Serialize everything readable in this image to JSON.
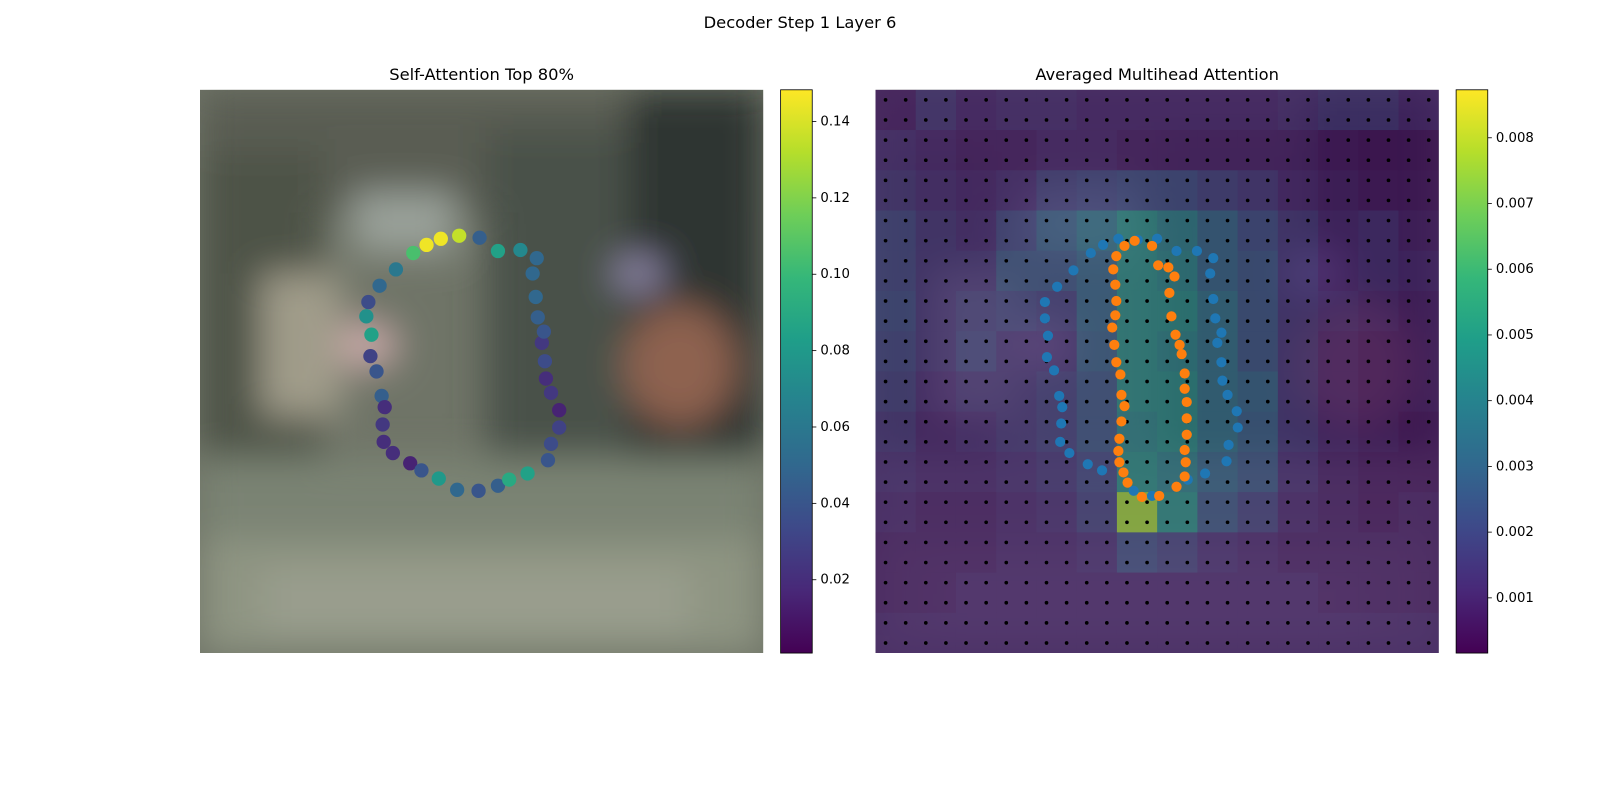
{
  "title": "Decoder Step 1 Layer 6",
  "chart_data": [
    {
      "type": "scatter",
      "title": "Self-Attention Top 80%",
      "colormap": "viridis",
      "xlim": [
        0,
        552
      ],
      "ylim": [
        552,
        0
      ],
      "x": [
        254,
        236,
        222,
        209,
        192,
        176,
        165,
        163,
        168,
        167,
        173,
        178,
        181,
        179,
        180,
        189,
        206,
        217,
        234,
        252,
        273,
        292,
        303,
        321,
        341,
        344,
        352,
        352,
        344,
        339,
        338,
        335,
        337,
        331,
        329,
        326,
        330,
        314,
        292,
        274
      ],
      "y": [
        143,
        146,
        152,
        160,
        176,
        192,
        208,
        222,
        240,
        261,
        276,
        300,
        311,
        328,
        345,
        356,
        366,
        373,
        381,
        392,
        393,
        388,
        382,
        376,
        363,
        347,
        331,
        314,
        297,
        283,
        266,
        248,
        237,
        223,
        203,
        180,
        165,
        157,
        158,
        145
      ],
      "values": [
        0.135,
        0.145,
        0.145,
        0.105,
        0.06,
        0.05,
        0.035,
        0.075,
        0.085,
        0.03,
        0.04,
        0.045,
        0.02,
        0.025,
        0.02,
        0.02,
        0.015,
        0.04,
        0.08,
        0.05,
        0.04,
        0.045,
        0.09,
        0.085,
        0.04,
        0.035,
        0.03,
        0.015,
        0.025,
        0.02,
        0.035,
        0.025,
        0.04,
        0.045,
        0.05,
        0.05,
        0.05,
        0.07,
        0.085,
        0.045
      ],
      "colorbar": {
        "lim": [
          0.0008,
          0.1483
        ],
        "ticks": [
          0.02,
          0.04,
          0.06,
          0.08,
          {
            "value": 0.1,
            "label": "0.10"
          },
          0.12,
          0.14
        ]
      }
    },
    {
      "type": "heatmap",
      "title": "Averaged Multihead Attention",
      "colormap": "viridis",
      "xlim": [
        0,
        552
      ],
      "ylim": [
        552,
        0
      ],
      "z": [
        [
          0.0008,
          0.0015,
          0.001,
          0.0012,
          0.0012,
          0.001,
          0.001,
          0.001,
          0.001,
          0.001,
          0.0012,
          0.0015,
          0.0015,
          0.001
        ],
        [
          0.0012,
          0.001,
          0.0008,
          0.0008,
          0.001,
          0.001,
          0.0008,
          0.0008,
          0.0008,
          0.0008,
          0.0008,
          0.0006,
          0.0005,
          0.0005
        ],
        [
          0.0015,
          0.0012,
          0.001,
          0.0012,
          0.0018,
          0.002,
          0.0022,
          0.0022,
          0.0018,
          0.0015,
          0.001,
          0.0008,
          0.0006,
          0.0006
        ],
        [
          0.002,
          0.0015,
          0.0012,
          0.002,
          0.0028,
          0.0035,
          0.0045,
          0.004,
          0.003,
          0.0022,
          0.0015,
          0.001,
          0.0012,
          0.0008
        ],
        [
          0.002,
          0.0015,
          0.0015,
          0.0025,
          0.0025,
          0.003,
          0.0045,
          0.0042,
          0.003,
          0.0025,
          0.0015,
          0.001,
          0.0012,
          0.001
        ],
        [
          0.0022,
          0.0015,
          0.0018,
          0.002,
          0.0018,
          0.003,
          0.0045,
          0.0045,
          0.0035,
          0.0025,
          0.0015,
          0.0012,
          0.001,
          0.0008
        ],
        [
          0.002,
          0.0015,
          0.002,
          0.0015,
          0.0015,
          0.0028,
          0.0045,
          0.0042,
          0.0035,
          0.0025,
          0.0015,
          0.001,
          0.0008,
          0.0008
        ],
        [
          0.0018,
          0.0012,
          0.0015,
          0.0015,
          0.0018,
          0.0025,
          0.0045,
          0.0045,
          0.0035,
          0.003,
          0.0015,
          0.001,
          0.0008,
          0.0008
        ],
        [
          0.0015,
          0.001,
          0.0012,
          0.0015,
          0.0018,
          0.0025,
          0.0042,
          0.0045,
          0.0035,
          0.0028,
          0.0015,
          0.001,
          0.0008,
          0.0006
        ],
        [
          0.0012,
          0.001,
          0.001,
          0.0012,
          0.0015,
          0.002,
          0.0045,
          0.004,
          0.003,
          0.0025,
          0.0012,
          0.0008,
          0.0006,
          0.0006
        ],
        [
          0.001,
          0.0008,
          0.0008,
          0.001,
          0.0012,
          0.0018,
          0.0075,
          0.0045,
          0.0025,
          0.0018,
          0.001,
          0.0008,
          0.0006,
          0.0008
        ],
        [
          0.0008,
          0.0008,
          0.0008,
          0.001,
          0.001,
          0.0012,
          0.0022,
          0.0018,
          0.0012,
          0.001,
          0.0008,
          0.0008,
          0.0008,
          0.0008
        ],
        [
          0.0008,
          0.0008,
          0.001,
          0.001,
          0.001,
          0.001,
          0.001,
          0.001,
          0.001,
          0.001,
          0.001,
          0.0008,
          0.0008,
          0.0008
        ],
        [
          0.001,
          0.001,
          0.001,
          0.001,
          0.001,
          0.001,
          0.001,
          0.001,
          0.001,
          0.001,
          0.001,
          0.001,
          0.001,
          0.001
        ]
      ],
      "series": [
        {
          "color": "#1f77b4",
          "x": [
            211,
            223,
            238,
            257,
            276,
            295,
            315,
            331,
            328,
            331,
            333,
            339,
            335,
            339,
            340,
            345,
            354,
            355,
            346,
            344,
            323,
            306,
            271,
            253,
            222,
            208,
            190,
            181,
            182,
            183,
            180,
            175,
            168,
            169,
            166,
            166,
            178,
            194
          ],
          "y": [
            160,
            152,
            146,
            147,
            146,
            158,
            158,
            165,
            180,
            205,
            224,
            238,
            248,
            267,
            285,
            299,
            315,
            331,
            348,
            364,
            376,
            382,
            398,
            393,
            373,
            367,
            356,
            345,
            327,
            311,
            300,
            275,
            262,
            241,
            224,
            208,
            193,
            177
          ]
        },
        {
          "color": "#ff7f0e",
          "x": [
            236,
            244,
            254,
            271,
            277,
            287,
            293,
            288,
            290,
            294,
            298,
            300,
            303,
            303,
            305,
            305,
            305,
            303,
            304,
            303,
            295,
            278,
            261,
            247,
            243,
            239,
            238,
            239,
            241,
            244,
            241,
            240,
            236,
            234,
            232,
            235,
            236,
            235,
            233
          ],
          "y": [
            163,
            153,
            148,
            153,
            172,
            174,
            183,
            199,
            222,
            240,
            250,
            259,
            278,
            293,
            306,
            322,
            338,
            353,
            365,
            379,
            389,
            398,
            399,
            385,
            375,
            365,
            354,
            342,
            325,
            310,
            299,
            279,
            267,
            250,
            233,
            221,
            207,
            191,
            176
          ]
        }
      ],
      "colorbar": {
        "lim": [
          0.00016,
          0.00873
        ],
        "ticks": [
          0.001,
          0.002,
          0.003,
          0.004,
          0.005,
          0.006,
          0.007,
          0.008
        ]
      }
    }
  ]
}
